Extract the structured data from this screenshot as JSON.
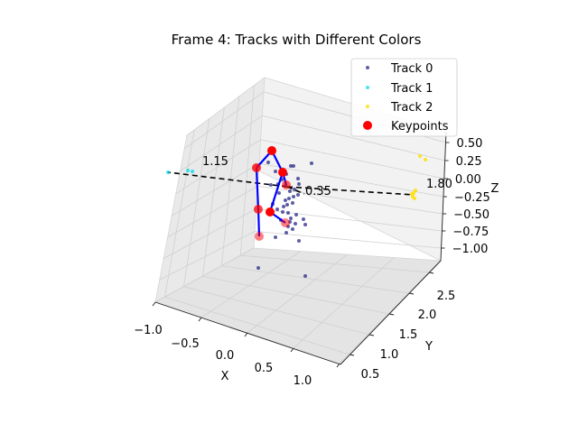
{
  "chart_data": {
    "type": "scatter",
    "title": "Frame 4: Tracks with Different Colors",
    "xlabel": "X",
    "ylabel": "Y",
    "zlabel": "Z",
    "x_ticks": [
      "−1.0",
      "−0.5",
      "0.0",
      "0.5",
      "1.0"
    ],
    "y_ticks": [
      "0.5",
      "1.0",
      "1.5",
      "2.0",
      "2.5"
    ],
    "z_ticks": [
      "0.50",
      "0.25",
      "0.00",
      "−0.25",
      "−0.50",
      "−0.75",
      "−1.00"
    ],
    "legend_placement": "top-right",
    "legend": [
      {
        "label": "Track 0",
        "color": "#1a1a80",
        "marker": "small-dot"
      },
      {
        "label": "Track 1",
        "color": "#00d8e6",
        "marker": "small-dot"
      },
      {
        "label": "Track 2",
        "color": "#ffe000",
        "marker": "small-dot"
      },
      {
        "label": "Keypoints",
        "color": "#ff0000",
        "marker": "large-dot"
      }
    ],
    "annotations": [
      "1.15",
      "0.35",
      "1.80"
    ],
    "colors": {
      "track0": "#1a1a80",
      "track1": "#00d8e6",
      "track2": "#ffe000",
      "keypoints": "#ff0000",
      "skeleton": "#0000ff",
      "dashed": "#000000"
    }
  }
}
